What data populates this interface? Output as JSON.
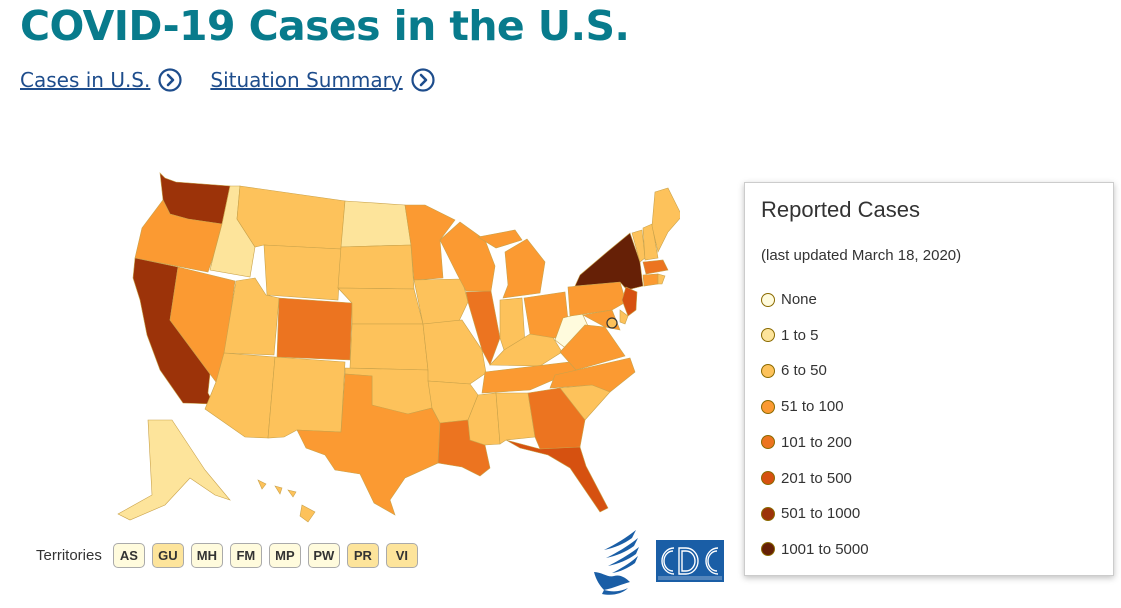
{
  "page": {
    "title": "COVID-19 Cases in the U.S.",
    "links": [
      {
        "label": "Cases in U.S. "
      },
      {
        "label": "Situation Summary "
      }
    ]
  },
  "legend": {
    "title": "Reported Cases",
    "updated": "(last updated March 18, 2020)",
    "items": [
      {
        "label": "None",
        "color": "#fffbdd"
      },
      {
        "label": "1 to 5",
        "color": "#fde49b"
      },
      {
        "label": "6 to 50",
        "color": "#fdc25b"
      },
      {
        "label": "51 to 100",
        "color": "#fb9a32"
      },
      {
        "label": "101 to 200",
        "color": "#ec7420"
      },
      {
        "label": "201 to 500",
        "color": "#d65110"
      },
      {
        "label": "501 to 1000",
        "color": "#9c3309"
      },
      {
        "label": "1001 to 5000",
        "color": "#662006"
      }
    ]
  },
  "territories": {
    "label": "Territories",
    "items": [
      {
        "code": "AS",
        "color": "#fffbdd"
      },
      {
        "code": "GU",
        "color": "#fde49b"
      },
      {
        "code": "MH",
        "color": "#fffbdd"
      },
      {
        "code": "FM",
        "color": "#fffbdd"
      },
      {
        "code": "MP",
        "color": "#fffbdd"
      },
      {
        "code": "PW",
        "color": "#fffbdd"
      },
      {
        "code": "PR",
        "color": "#fde49b"
      },
      {
        "code": "VI",
        "color": "#fde49b"
      }
    ]
  },
  "map_data": {
    "states": {
      "WA": "501 to 1000",
      "OR": "51 to 100",
      "CA": "501 to 1000",
      "NV": "51 to 100",
      "ID": "1 to 5",
      "MT": "6 to 50",
      "WY": "6 to 50",
      "UT": "6 to 50",
      "AZ": "6 to 50",
      "CO": "101 to 200",
      "NM": "6 to 50",
      "ND": "1 to 5",
      "SD": "6 to 50",
      "NE": "6 to 50",
      "KS": "6 to 50",
      "OK": "6 to 50",
      "TX": "51 to 100",
      "MN": "51 to 100",
      "IA": "6 to 50",
      "MO": "6 to 50",
      "AR": "6 to 50",
      "LA": "101 to 200",
      "WI": "51 to 100",
      "IL": "101 to 200",
      "MS": "6 to 50",
      "AL": "6 to 50",
      "MI": "51 to 100",
      "IN": "6 to 50",
      "KY": "6 to 50",
      "TN": "51 to 100",
      "OH": "51 to 100",
      "WV": "None",
      "VA": "51 to 100",
      "NC": "51 to 100",
      "SC": "6 to 50",
      "GA": "101 to 200",
      "FL": "201 to 500",
      "PA": "51 to 100",
      "NY": "1001 to 5000",
      "NJ": "201 to 500",
      "MD": "51 to 100",
      "DE": "6 to 50",
      "VT": "6 to 50",
      "NH": "6 to 50",
      "ME": "6 to 50",
      "MA": "101 to 200",
      "CT": "51 to 100",
      "RI": "6 to 50",
      "AK": "1 to 5",
      "HI": "6 to 50"
    }
  }
}
